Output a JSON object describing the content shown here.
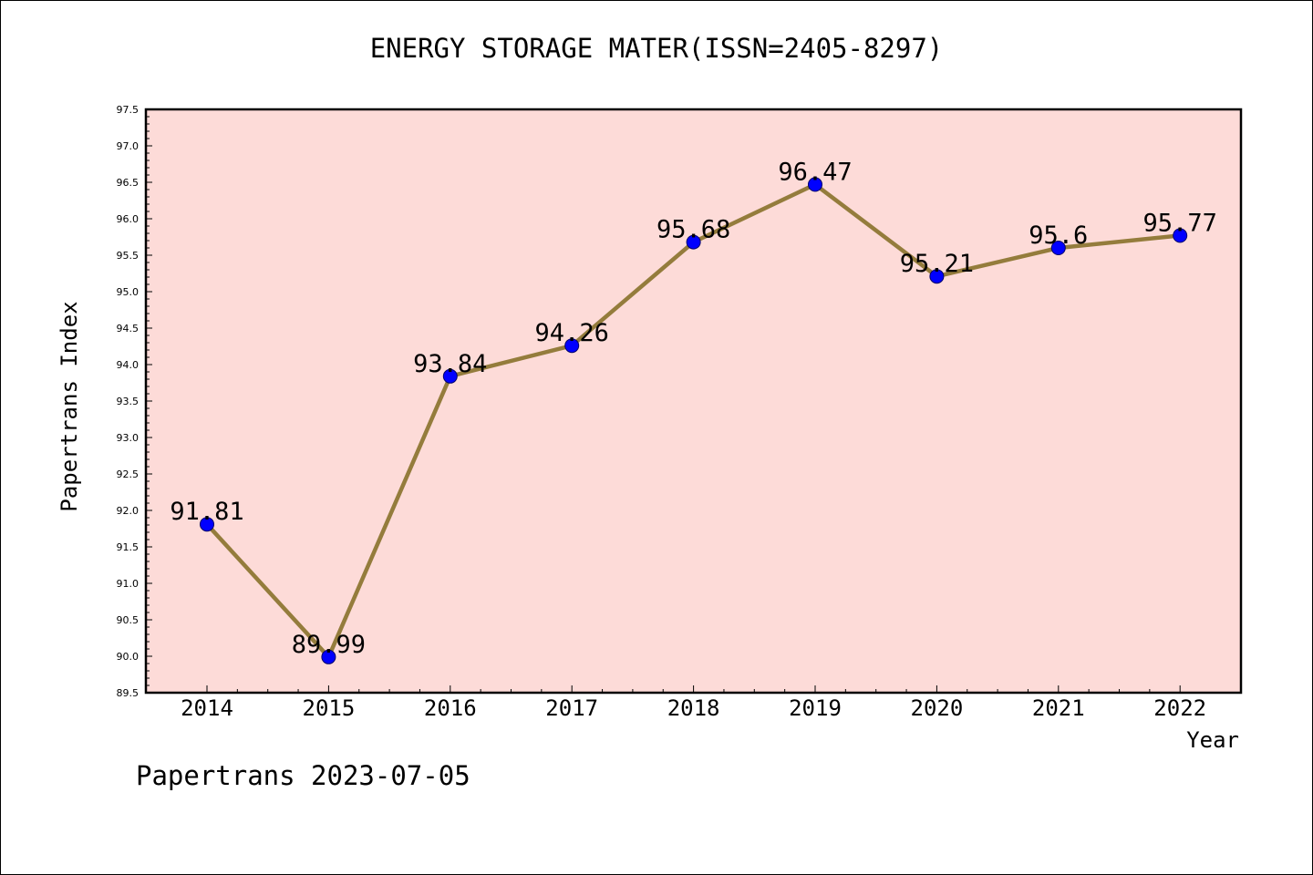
{
  "chart_data": {
    "type": "line",
    "title": "ENERGY STORAGE MATER(ISSN=2405-8297)",
    "xlabel": "Year",
    "ylabel": "Papertrans Index",
    "categories": [
      "2014",
      "2015",
      "2016",
      "2017",
      "2018",
      "2019",
      "2020",
      "2021",
      "2022"
    ],
    "series": [
      {
        "values": [
          91.81,
          89.99,
          93.84,
          94.26,
          95.68,
          96.47,
          95.21,
          95.6,
          95.77
        ],
        "labels": [
          "91.81",
          "89.99",
          "93.84",
          "94.26",
          "95.68",
          "96.47",
          "95.21",
          "95.6",
          "95.77"
        ]
      }
    ],
    "ylim": [
      89.5,
      97.5
    ],
    "yticks": [
      "89.5",
      "90.0",
      "90.5",
      "91.0",
      "91.5",
      "92.0",
      "92.5",
      "93.0",
      "93.5",
      "94.0",
      "94.5",
      "95.0",
      "95.5",
      "96.0",
      "96.5",
      "97.0",
      "97.5"
    ],
    "grid": false,
    "legend": "none",
    "colors": {
      "plot_background": "#fddbd8",
      "line": "#947c3c",
      "marker": "#0000ff",
      "axis": "#000000"
    }
  },
  "footer": {
    "note": "Papertrans 2023-07-05"
  }
}
